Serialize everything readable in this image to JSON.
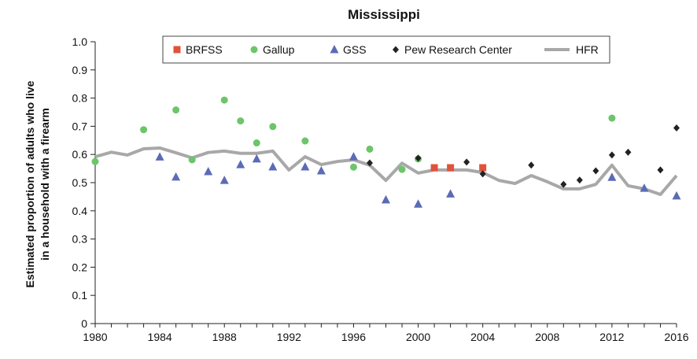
{
  "chart_data": {
    "type": "scatter",
    "title": "Mississippi",
    "xlabel": "",
    "ylabel": [
      "Estimated proportion of adults who live",
      "in a household with a firearm"
    ],
    "xlim": [
      1980,
      2016
    ],
    "ylim": [
      0,
      1.0
    ],
    "x_ticks": [
      "1980",
      "1984",
      "1988",
      "1992",
      "1996",
      "2000",
      "2004",
      "2008",
      "2012",
      "2016"
    ],
    "y_ticks": [
      "0",
      "0.1",
      "0.2",
      "0.3",
      "0.4",
      "0.5",
      "0.6",
      "0.7",
      "0.8",
      "0.9",
      "1.0"
    ],
    "grid": "none",
    "legend_position": "top",
    "series": [
      {
        "name": "BRFSS",
        "marker": "square",
        "color": "#e0533a",
        "points": [
          [
            2001,
            0.553
          ],
          [
            2002,
            0.553
          ],
          [
            2004,
            0.553
          ]
        ]
      },
      {
        "name": "Gallup",
        "marker": "circle",
        "color": "#6cc56a",
        "points": [
          [
            1980,
            0.575
          ],
          [
            1983,
            0.688
          ],
          [
            1985,
            0.758
          ],
          [
            1986,
            0.581
          ],
          [
            1988,
            0.793
          ],
          [
            1989,
            0.719
          ],
          [
            1990,
            0.641
          ],
          [
            1991,
            0.699
          ],
          [
            1993,
            0.648
          ],
          [
            1996,
            0.555
          ],
          [
            1997,
            0.619
          ],
          [
            1999,
            0.547
          ],
          [
            2000,
            0.584
          ],
          [
            2012,
            0.729
          ]
        ]
      },
      {
        "name": "GSS",
        "marker": "triangle",
        "color": "#5b6bb5",
        "points": [
          [
            1984,
            0.591
          ],
          [
            1985,
            0.52
          ],
          [
            1987,
            0.539
          ],
          [
            1988,
            0.508
          ],
          [
            1989,
            0.564
          ],
          [
            1990,
            0.584
          ],
          [
            1991,
            0.556
          ],
          [
            1993,
            0.556
          ],
          [
            1994,
            0.542
          ],
          [
            1996,
            0.592
          ],
          [
            1998,
            0.439
          ],
          [
            2000,
            0.424
          ],
          [
            2002,
            0.46
          ],
          [
            2012,
            0.519
          ],
          [
            2014,
            0.48
          ],
          [
            2016,
            0.453
          ]
        ]
      },
      {
        "name": "Pew Research Center",
        "marker": "diamond",
        "color": "#222222",
        "points": [
          [
            1997,
            0.57
          ],
          [
            2000,
            0.587
          ],
          [
            2003,
            0.573
          ],
          [
            2004,
            0.531
          ],
          [
            2007,
            0.562
          ],
          [
            2009,
            0.494
          ],
          [
            2010,
            0.509
          ],
          [
            2011,
            0.542
          ],
          [
            2012,
            0.598
          ],
          [
            2013,
            0.608
          ],
          [
            2015,
            0.545
          ],
          [
            2016,
            0.694
          ]
        ]
      },
      {
        "name": "HFR",
        "marker": "line",
        "color": "#a8a8a8",
        "points": [
          [
            1980,
            0.592
          ],
          [
            1981,
            0.608
          ],
          [
            1982,
            0.598
          ],
          [
            1983,
            0.62
          ],
          [
            1984,
            0.623
          ],
          [
            1985,
            0.606
          ],
          [
            1986,
            0.588
          ],
          [
            1987,
            0.607
          ],
          [
            1988,
            0.612
          ],
          [
            1989,
            0.604
          ],
          [
            1990,
            0.604
          ],
          [
            1991,
            0.612
          ],
          [
            1992,
            0.545
          ],
          [
            1993,
            0.592
          ],
          [
            1994,
            0.564
          ],
          [
            1995,
            0.575
          ],
          [
            1996,
            0.581
          ],
          [
            1997,
            0.562
          ],
          [
            1998,
            0.508
          ],
          [
            1999,
            0.569
          ],
          [
            2000,
            0.534
          ],
          [
            2001,
            0.545
          ],
          [
            2002,
            0.545
          ],
          [
            2003,
            0.545
          ],
          [
            2004,
            0.536
          ],
          [
            2005,
            0.508
          ],
          [
            2006,
            0.497
          ],
          [
            2007,
            0.525
          ],
          [
            2008,
            0.503
          ],
          [
            2009,
            0.478
          ],
          [
            2010,
            0.478
          ],
          [
            2011,
            0.494
          ],
          [
            2012,
            0.562
          ],
          [
            2013,
            0.489
          ],
          [
            2014,
            0.478
          ],
          [
            2015,
            0.458
          ],
          [
            2016,
            0.525
          ]
        ]
      }
    ]
  }
}
